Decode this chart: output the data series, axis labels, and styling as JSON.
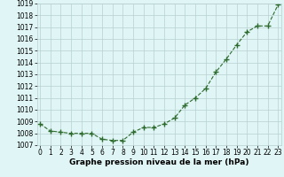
{
  "x": [
    0,
    1,
    2,
    3,
    4,
    5,
    6,
    7,
    8,
    9,
    10,
    11,
    12,
    13,
    14,
    15,
    16,
    17,
    18,
    19,
    20,
    21,
    22,
    23
  ],
  "y": [
    1008.8,
    1008.2,
    1008.1,
    1008.0,
    1008.0,
    1008.0,
    1007.5,
    1007.4,
    1007.4,
    1008.1,
    1008.5,
    1008.5,
    1008.8,
    1009.3,
    1010.4,
    1011.0,
    1011.8,
    1013.2,
    1014.3,
    1015.5,
    1016.6,
    1017.1,
    1017.1,
    1018.9
  ],
  "line_color": "#2d6a2d",
  "marker": "+",
  "marker_size": 4,
  "bg_color": "#e0f5f5",
  "grid_color": "#b8d0d0",
  "xlabel": "Graphe pression niveau de la mer (hPa)",
  "xlabel_fontsize": 6.5,
  "tick_fontsize": 5.5,
  "ylim": [
    1007,
    1019
  ],
  "xlim": [
    -0.3,
    23.3
  ],
  "yticks": [
    1007,
    1008,
    1009,
    1010,
    1011,
    1012,
    1013,
    1014,
    1015,
    1016,
    1017,
    1018,
    1019
  ],
  "xticks": [
    0,
    1,
    2,
    3,
    4,
    5,
    6,
    7,
    8,
    9,
    10,
    11,
    12,
    13,
    14,
    15,
    16,
    17,
    18,
    19,
    20,
    21,
    22,
    23
  ]
}
